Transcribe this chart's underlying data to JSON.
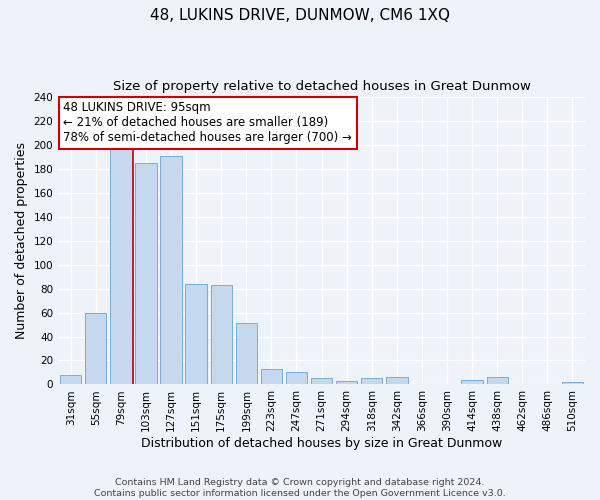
{
  "title": "48, LUKINS DRIVE, DUNMOW, CM6 1XQ",
  "subtitle": "Size of property relative to detached houses in Great Dunmow",
  "xlabel": "Distribution of detached houses by size in Great Dunmow",
  "ylabel": "Number of detached properties",
  "bar_labels": [
    "31sqm",
    "55sqm",
    "79sqm",
    "103sqm",
    "127sqm",
    "151sqm",
    "175sqm",
    "199sqm",
    "223sqm",
    "247sqm",
    "271sqm",
    "294sqm",
    "318sqm",
    "342sqm",
    "366sqm",
    "390sqm",
    "414sqm",
    "438sqm",
    "462sqm",
    "486sqm",
    "510sqm"
  ],
  "bar_values": [
    8,
    60,
    201,
    185,
    191,
    84,
    83,
    51,
    13,
    10,
    5,
    3,
    5,
    6,
    0,
    0,
    4,
    6,
    0,
    0,
    2
  ],
  "bar_color": "#c5d8ee",
  "bar_edge_color": "#7aaed6",
  "vline_x_idx": 2,
  "vline_color": "#cc0000",
  "annotation_text": "48 LUKINS DRIVE: 95sqm\n← 21% of detached houses are smaller (189)\n78% of semi-detached houses are larger (700) →",
  "ylim": [
    0,
    240
  ],
  "yticks": [
    0,
    20,
    40,
    60,
    80,
    100,
    120,
    140,
    160,
    180,
    200,
    220,
    240
  ],
  "footer_line1": "Contains HM Land Registry data © Crown copyright and database right 2024.",
  "footer_line2": "Contains public sector information licensed under the Open Government Licence v3.0.",
  "bg_color": "#eef2f9",
  "grid_color": "#ffffff",
  "title_fontsize": 11,
  "subtitle_fontsize": 9.5,
  "axis_label_fontsize": 9,
  "tick_fontsize": 7.5,
  "footer_fontsize": 6.8,
  "annotation_fontsize": 8.5
}
